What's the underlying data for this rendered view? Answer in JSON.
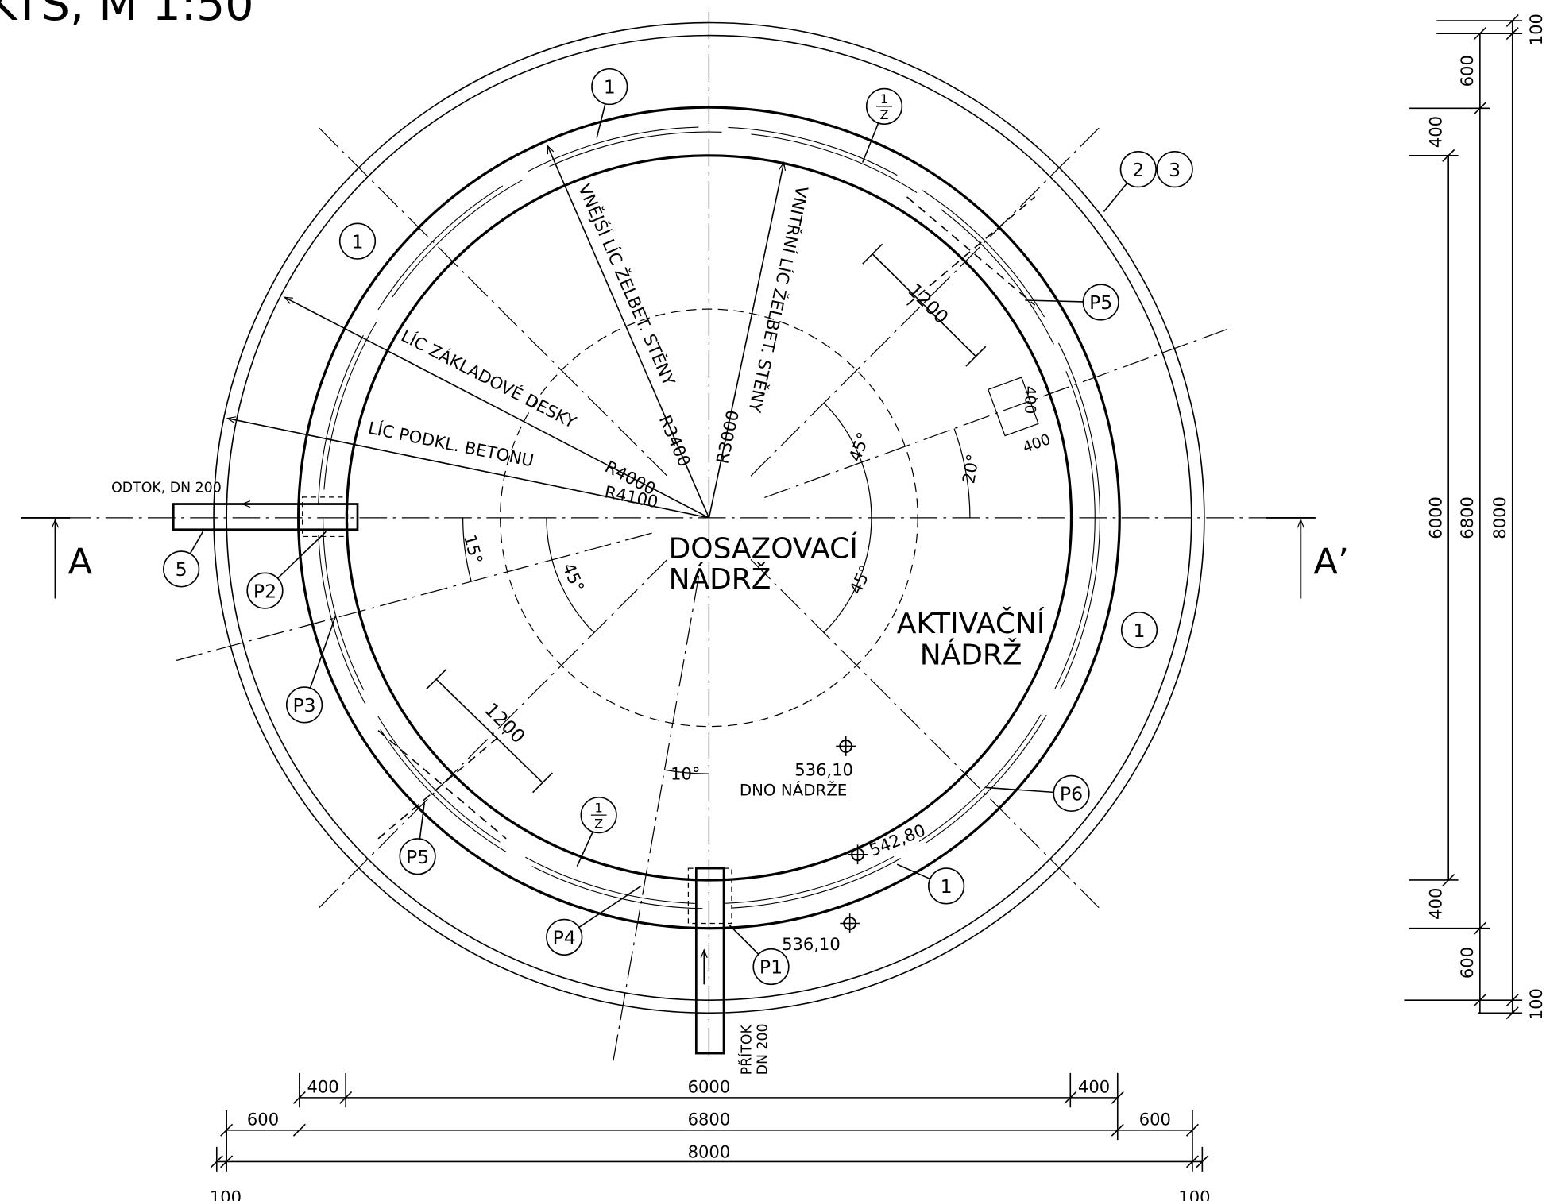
{
  "title": "KTS, M 1:50",
  "section": {
    "left": "A",
    "right": "A’"
  },
  "callouts": [
    "1",
    "1",
    "1",
    "1",
    "2",
    "3",
    "5",
    "P1",
    "P2",
    "P3",
    "P4",
    "P5",
    "P5",
    "P6"
  ],
  "fractions": [
    {
      "top": "1",
      "bottom": "Z"
    },
    {
      "top": "1",
      "bottom": "Z"
    }
  ],
  "notes": {
    "outflow": "ODTOK, DN 200",
    "inflow": [
      "PŘÍTOK",
      "DN 200"
    ],
    "outer_wall": "VNĚJŠÍ LÍC ŽELBET. STĚNY",
    "inner_wall": "VNITŘNÍ LÍC ŽELBET. STĚNY",
    "slab": "LÍC ZÁKLADOVÉ DESKY",
    "base": "LÍC PODKL. BETONU",
    "tank_1": [
      "DOSAZOVACÍ",
      "NÁDRŽ"
    ],
    "tank_2": [
      "AKTIVAČNÍ",
      "NÁDRŽ"
    ],
    "bottom_label": "DNO NÁDRŽE"
  },
  "radii": [
    "R4000",
    "R4100",
    "R3400",
    "R3000"
  ],
  "angles": [
    "45°",
    "45°",
    "45°",
    "20°",
    "15°",
    "10°"
  ],
  "levels": [
    "536,10",
    "542,80",
    "536,10"
  ],
  "dims_plan": [
    "1200",
    "1200",
    "400",
    "400"
  ],
  "dims_bottom": [
    "400",
    "6000",
    "400",
    "600",
    "6800",
    "600",
    "8000",
    "100",
    "100"
  ],
  "dims_right": [
    "100",
    "600",
    "400",
    "6000",
    "6800",
    "8000",
    "400",
    "600",
    "100"
  ]
}
